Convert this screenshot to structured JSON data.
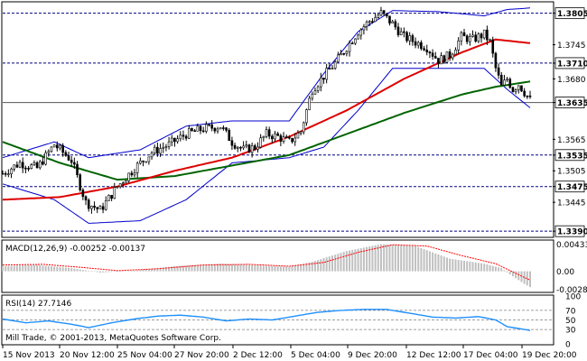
{
  "colors": {
    "background": "#ffffff",
    "candle": "#000000",
    "bollinger": "#0000cc",
    "ma_red": "#dd0000",
    "ma_green": "#006400",
    "level_line": "#000080",
    "macd_hist": "#c0c0c0",
    "macd_signal": "#ff0000",
    "rsi_line": "#1e90ff",
    "grid_dash": "#808080"
  },
  "chart_data": [
    {
      "type": "candlestick",
      "ylim": [
        1.338,
        1.3825
      ],
      "y_ticks": [
        "1.3805",
        "1.3745",
        "1.3710",
        "1.3680",
        "1.3635",
        "1.3565",
        "1.3535",
        "1.3505",
        "1.3475",
        "1.3445",
        "1.3390"
      ],
      "y_ticks_highlighted": [
        "1.3805",
        "1.3710",
        "1.3635",
        "1.3535",
        "1.3475",
        "1.3390"
      ],
      "horizontal_levels": [
        1.3805,
        1.371,
        1.3535,
        1.3475,
        1.339
      ],
      "current_price_line": 1.3635,
      "x_ticks": [
        "15 Nov 2013",
        "20 Nov 12:00",
        "25 Nov 04:00",
        "27 Nov 20:00",
        "2 Dec 12:00",
        "5 Dec 04:00",
        "9 Dec 20:00",
        "12 Dec 12:00",
        "17 Dec 04:00",
        "19 Dec 20:00"
      ],
      "close_path": [
        [
          0,
          1.35
        ],
        [
          6,
          1.352
        ],
        [
          12,
          1.351
        ],
        [
          18,
          1.3555
        ],
        [
          24,
          1.3525
        ],
        [
          29,
          1.3445
        ],
        [
          34,
          1.343
        ],
        [
          40,
          1.3475
        ],
        [
          46,
          1.351
        ],
        [
          52,
          1.354
        ],
        [
          58,
          1.3555
        ],
        [
          64,
          1.3575
        ],
        [
          70,
          1.3585
        ],
        [
          76,
          1.359
        ],
        [
          80,
          1.356
        ],
        [
          84,
          1.3545
        ],
        [
          88,
          1.355
        ],
        [
          92,
          1.3575
        ],
        [
          96,
          1.357
        ],
        [
          100,
          1.356
        ],
        [
          104,
          1.358
        ],
        [
          108,
          1.366
        ],
        [
          112,
          1.3685
        ],
        [
          116,
          1.371
        ],
        [
          120,
          1.374
        ],
        [
          124,
          1.377
        ],
        [
          128,
          1.379
        ],
        [
          132,
          1.3805
        ],
        [
          136,
          1.3785
        ],
        [
          140,
          1.376
        ],
        [
          144,
          1.375
        ],
        [
          148,
          1.374
        ],
        [
          152,
          1.3715
        ],
        [
          156,
          1.3725
        ],
        [
          160,
          1.376
        ],
        [
          164,
          1.3755
        ],
        [
          168,
          1.3765
        ],
        [
          170,
          1.375
        ],
        [
          172,
          1.37
        ],
        [
          174,
          1.3665
        ],
        [
          176,
          1.368
        ],
        [
          178,
          1.366
        ],
        [
          180,
          1.367
        ],
        [
          182,
          1.3655
        ],
        [
          184,
          1.364
        ]
      ],
      "ma_red": [
        [
          0,
          1.345
        ],
        [
          20,
          1.3455
        ],
        [
          40,
          1.3475
        ],
        [
          60,
          1.3505
        ],
        [
          80,
          1.353
        ],
        [
          100,
          1.357
        ],
        [
          120,
          1.362
        ],
        [
          140,
          1.368
        ],
        [
          160,
          1.373
        ],
        [
          172,
          1.3755
        ],
        [
          184,
          1.3748
        ]
      ],
      "ma_green": [
        [
          0,
          1.356
        ],
        [
          20,
          1.352
        ],
        [
          40,
          1.3488
        ],
        [
          60,
          1.3495
        ],
        [
          80,
          1.3515
        ],
        [
          100,
          1.3535
        ],
        [
          120,
          1.3575
        ],
        [
          140,
          1.3615
        ],
        [
          160,
          1.365
        ],
        [
          172,
          1.3665
        ],
        [
          184,
          1.3675
        ]
      ],
      "bb_upper": [
        [
          0,
          1.353
        ],
        [
          18,
          1.356
        ],
        [
          30,
          1.353
        ],
        [
          48,
          1.3545
        ],
        [
          64,
          1.359
        ],
        [
          80,
          1.36
        ],
        [
          100,
          1.36
        ],
        [
          112,
          1.369
        ],
        [
          124,
          1.377
        ],
        [
          136,
          1.381
        ],
        [
          152,
          1.3808
        ],
        [
          168,
          1.38
        ],
        [
          176,
          1.3812
        ],
        [
          184,
          1.3815
        ]
      ],
      "bb_lower": [
        [
          0,
          1.348
        ],
        [
          18,
          1.345
        ],
        [
          30,
          1.3405
        ],
        [
          48,
          1.341
        ],
        [
          64,
          1.345
        ],
        [
          80,
          1.352
        ],
        [
          100,
          1.353
        ],
        [
          112,
          1.355
        ],
        [
          124,
          1.362
        ],
        [
          136,
          1.37
        ],
        [
          152,
          1.37
        ],
        [
          168,
          1.37
        ],
        [
          176,
          1.366
        ],
        [
          184,
          1.3625
        ]
      ]
    },
    {
      "type": "histogram",
      "title": "MACD(12,26,9) -0.00252 -0.00137",
      "ylim": [
        -0.0032,
        0.0048
      ],
      "y_ticks": [
        "0.00433",
        "0.00",
        "-0.00284"
      ],
      "bar_levels": [
        [
          0,
          0.0008
        ],
        [
          12,
          0.001
        ],
        [
          24,
          0.0005
        ],
        [
          34,
          -0.0002
        ],
        [
          46,
          0.0001
        ],
        [
          60,
          0.0008
        ],
        [
          76,
          0.0012
        ],
        [
          90,
          0.0009
        ],
        [
          100,
          0.0007
        ],
        [
          108,
          0.0015
        ],
        [
          120,
          0.0032
        ],
        [
          132,
          0.0043
        ],
        [
          144,
          0.004
        ],
        [
          156,
          0.002
        ],
        [
          168,
          0.0012
        ],
        [
          174,
          0.0005
        ],
        [
          178,
          -0.0008
        ],
        [
          182,
          -0.002
        ],
        [
          184,
          -0.0025
        ]
      ],
      "signal": [
        [
          0,
          0.001
        ],
        [
          14,
          0.0011
        ],
        [
          28,
          0.0006
        ],
        [
          40,
          0.0001
        ],
        [
          54,
          0.0004
        ],
        [
          70,
          0.001
        ],
        [
          86,
          0.0011
        ],
        [
          100,
          0.0008
        ],
        [
          112,
          0.0014
        ],
        [
          124,
          0.003
        ],
        [
          136,
          0.0042
        ],
        [
          148,
          0.004
        ],
        [
          160,
          0.0025
        ],
        [
          172,
          0.0012
        ],
        [
          184,
          -0.0014
        ]
      ]
    },
    {
      "type": "line",
      "title": "RSI(14) 27.7146",
      "ylim": [
        0,
        100
      ],
      "y_ticks": [
        "100",
        "70",
        "50",
        "30",
        "0"
      ],
      "levels": [
        70,
        50,
        30
      ],
      "rsi": [
        [
          0,
          52
        ],
        [
          8,
          44
        ],
        [
          16,
          48
        ],
        [
          24,
          41
        ],
        [
          30,
          34
        ],
        [
          38,
          44
        ],
        [
          46,
          52
        ],
        [
          54,
          58
        ],
        [
          62,
          60
        ],
        [
          70,
          56
        ],
        [
          78,
          48
        ],
        [
          86,
          52
        ],
        [
          94,
          50
        ],
        [
          102,
          58
        ],
        [
          110,
          66
        ],
        [
          118,
          70
        ],
        [
          126,
          72
        ],
        [
          134,
          72
        ],
        [
          142,
          64
        ],
        [
          150,
          56
        ],
        [
          158,
          54
        ],
        [
          166,
          57
        ],
        [
          172,
          50
        ],
        [
          176,
          36
        ],
        [
          180,
          32
        ],
        [
          184,
          28
        ]
      ]
    }
  ],
  "copyright": "Mill Trade, © 2001-2013, MetaQuotes Software Corp."
}
